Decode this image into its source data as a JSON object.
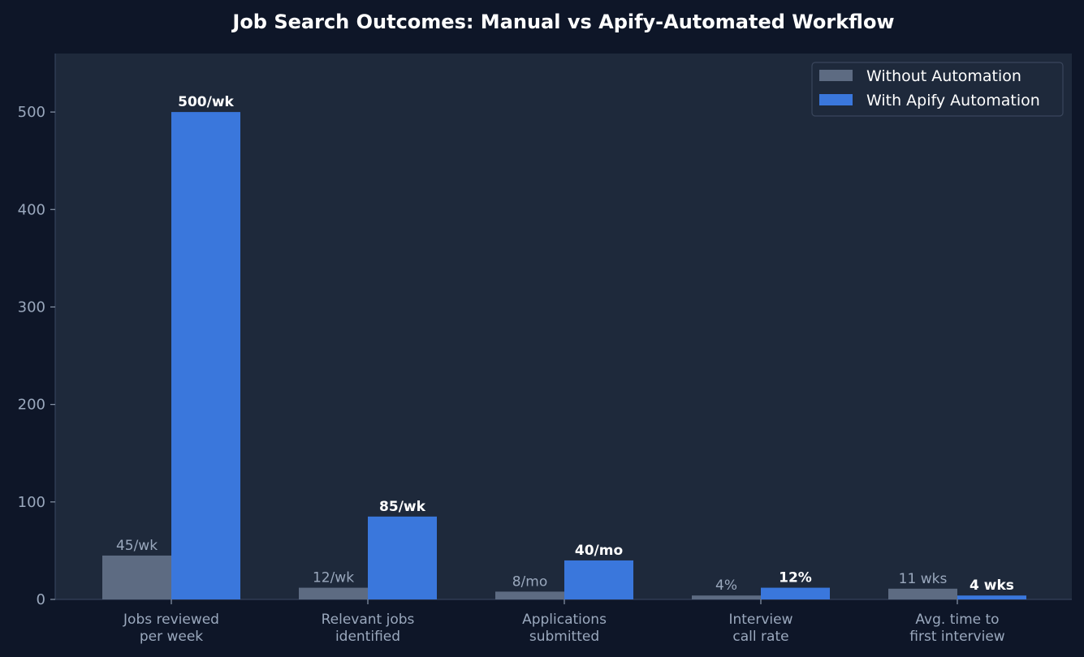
{
  "chart_data": {
    "type": "bar",
    "title": "Job Search Outcomes: Manual vs Apify-Automated Workflow",
    "xlabel": "",
    "ylabel": "",
    "ylim": [
      0,
      560
    ],
    "yticks": [
      0,
      100,
      200,
      300,
      400,
      500
    ],
    "grid": false,
    "legend_position": "top-right",
    "categories": [
      [
        "Jobs reviewed",
        "per week"
      ],
      [
        "Relevant jobs",
        "identified"
      ],
      [
        "Applications",
        "submitted"
      ],
      [
        "Interview",
        "call rate"
      ],
      [
        "Avg. time to",
        "first interview"
      ]
    ],
    "series": [
      {
        "name": "Without Automation",
        "color": "#5d6b82",
        "values": [
          45,
          12,
          8,
          4,
          11
        ],
        "labels": [
          "45/wk",
          "12/wk",
          "8/mo",
          "4%",
          "11 wks"
        ]
      },
      {
        "name": "With Apify Automation",
        "color": "#3a77dc",
        "values": [
          500,
          85,
          40,
          12,
          4
        ],
        "labels": [
          "500/wk",
          "85/wk",
          "40/mo",
          "12%",
          "4 wks"
        ]
      }
    ]
  }
}
